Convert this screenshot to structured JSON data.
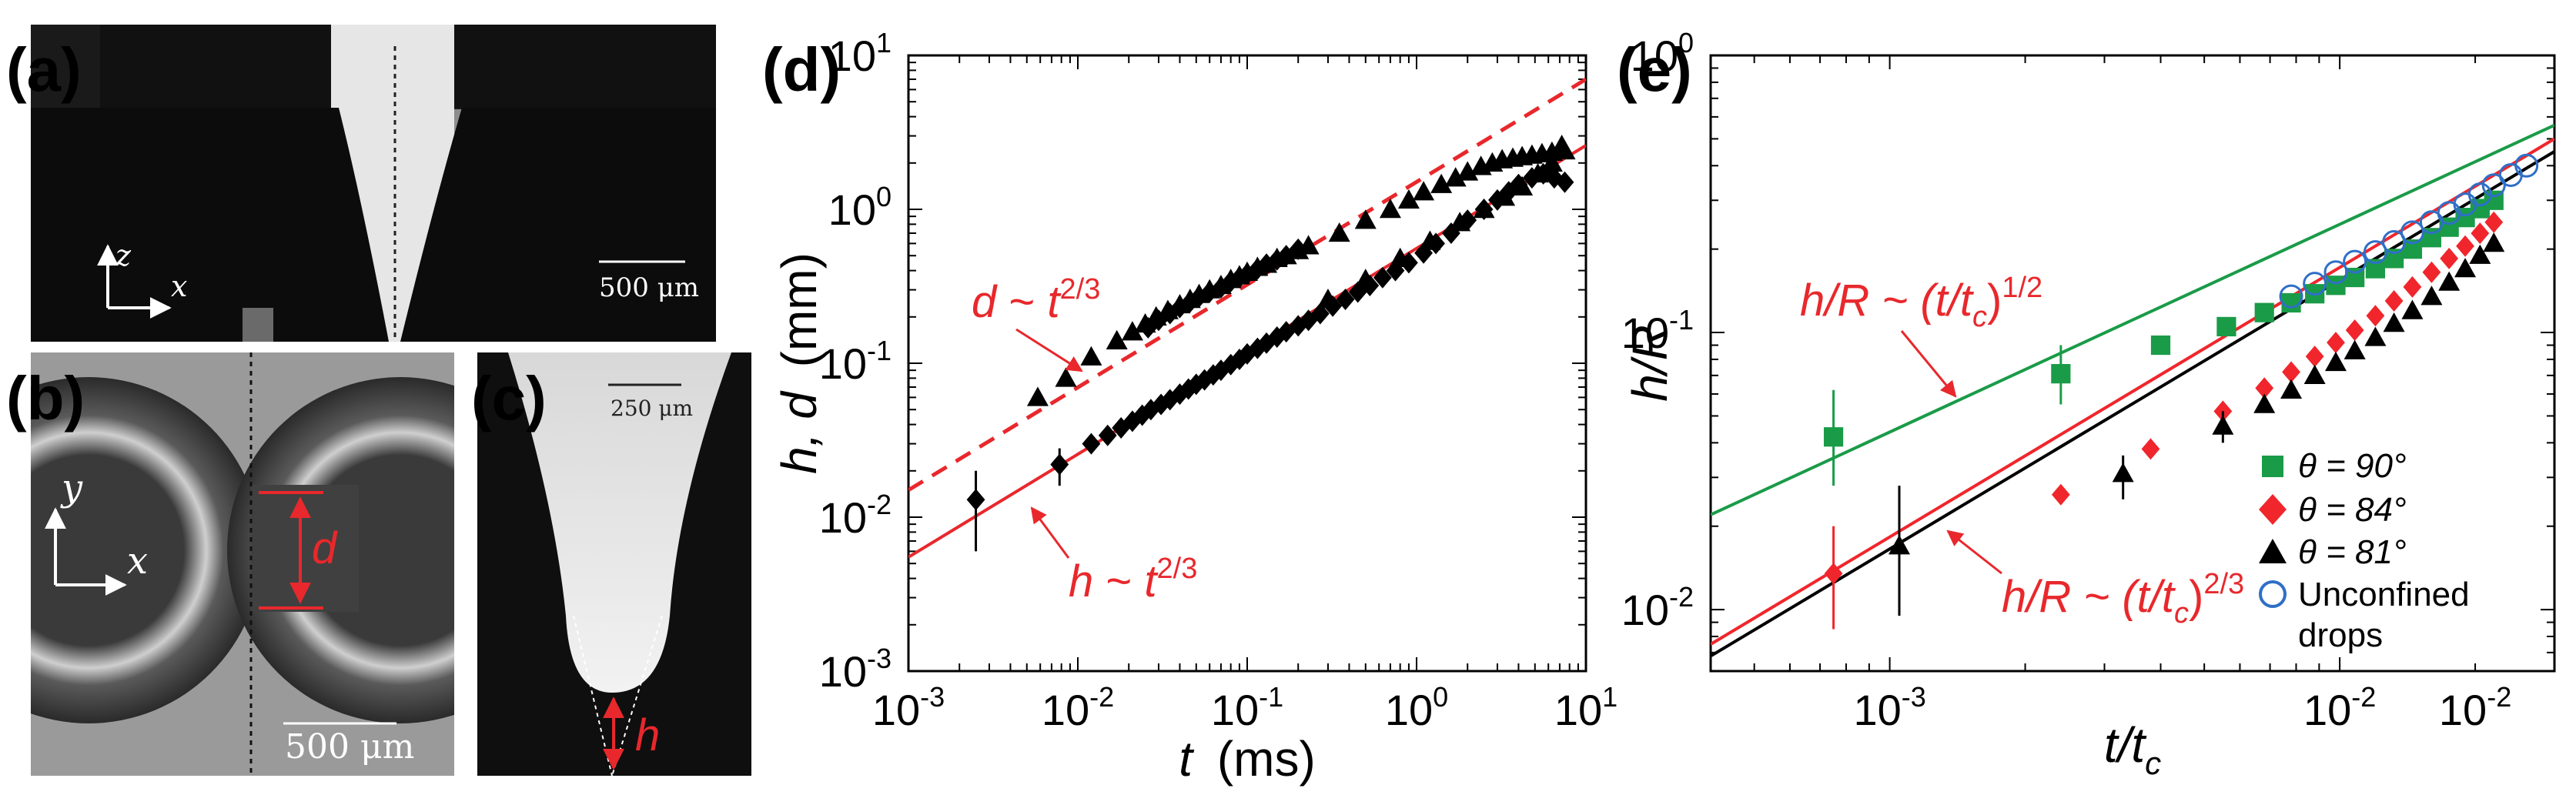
{
  "panels": {
    "a": {
      "label": "(a)",
      "axis_z": "z",
      "axis_x": "x",
      "scale": "500 μm"
    },
    "b": {
      "label": "(b)",
      "axis_y": "y",
      "axis_x": "x",
      "d_label": "d",
      "scale": "500 μm"
    },
    "c": {
      "label": "(c)",
      "scale": "250 μm",
      "h_label": "h"
    }
  },
  "chart_data": [
    {
      "panel": "(d)",
      "type": "scatter",
      "scale": "log-log",
      "xlabel_var": "t",
      "xlabel_unit": "(ms)",
      "ylabel_var": "h, d",
      "ylabel_unit": "(mm)",
      "xlim": [
        0.001,
        10
      ],
      "ylim": [
        0.001,
        10
      ],
      "x_ticks": [
        {
          "base": "10",
          "exp": "-3"
        },
        {
          "base": "10",
          "exp": "-2"
        },
        {
          "base": "10",
          "exp": "-1"
        },
        {
          "base": "10",
          "exp": "0"
        },
        {
          "base": "10",
          "exp": "1"
        }
      ],
      "y_ticks": [
        {
          "base": "10",
          "exp": "-3"
        },
        {
          "base": "10",
          "exp": "-2"
        },
        {
          "base": "10",
          "exp": "-1"
        },
        {
          "base": "10",
          "exp": "0"
        },
        {
          "base": "10",
          "exp": "1"
        }
      ],
      "series": [
        {
          "name": "d (triangles)",
          "marker": "triangle",
          "color": "#000000",
          "x": [
            0.0058,
            0.0085,
            0.012,
            0.017,
            0.021,
            0.025,
            0.029,
            0.034,
            0.04,
            0.046,
            0.052,
            0.06,
            0.07,
            0.08,
            0.09,
            0.1,
            0.115,
            0.13,
            0.15,
            0.17,
            0.2,
            0.23,
            0.35,
            0.5,
            0.7,
            0.9,
            1.1,
            1.4,
            1.7,
            2.0,
            2.4,
            2.8,
            3.2,
            3.7,
            4.2,
            4.8,
            5.5,
            6.3,
            7.2
          ],
          "y": [
            0.06,
            0.08,
            0.11,
            0.14,
            0.16,
            0.18,
            0.2,
            0.22,
            0.24,
            0.26,
            0.28,
            0.3,
            0.32,
            0.35,
            0.37,
            0.39,
            0.42,
            0.44,
            0.48,
            0.5,
            0.54,
            0.58,
            0.7,
            0.85,
            1.0,
            1.15,
            1.3,
            1.45,
            1.6,
            1.75,
            1.9,
            2.0,
            2.1,
            2.15,
            2.2,
            2.25,
            2.3,
            2.35,
            2.6
          ]
        },
        {
          "name": "d (diamonds)",
          "marker": "diamond",
          "color": "#000000",
          "x": [
            0.026,
            0.03,
            0.035,
            0.04,
            0.046,
            0.052,
            0.06,
            0.07,
            0.08,
            0.09,
            0.1,
            0.115,
            0.13,
            0.15,
            0.17,
            0.2
          ],
          "y": [
            0.17,
            0.19,
            0.21,
            0.23,
            0.25,
            0.27,
            0.29,
            0.31,
            0.34,
            0.36,
            0.38,
            0.41,
            0.44,
            0.47,
            0.5,
            0.55
          ]
        },
        {
          "name": "h (diamonds)",
          "marker": "diamond",
          "color": "#000000",
          "x": [
            0.0025,
            0.0078,
            0.012,
            0.015,
            0.018,
            0.021,
            0.024,
            0.027,
            0.031,
            0.035,
            0.04,
            0.045,
            0.05,
            0.056,
            0.063,
            0.07,
            0.08,
            0.09,
            0.1,
            0.115,
            0.13,
            0.15,
            0.17,
            0.2,
            0.23,
            0.27,
            0.32,
            0.38,
            0.45,
            0.53,
            0.63,
            0.75,
            0.9,
            1.1,
            1.3,
            1.6,
            2.0,
            2.5,
            3.0,
            3.5,
            4.0,
            4.8,
            5.6,
            6.5,
            7.5
          ],
          "y": [
            0.013,
            0.022,
            0.03,
            0.034,
            0.038,
            0.042,
            0.046,
            0.05,
            0.054,
            0.058,
            0.063,
            0.068,
            0.073,
            0.078,
            0.084,
            0.09,
            0.098,
            0.106,
            0.115,
            0.125,
            0.135,
            0.148,
            0.16,
            0.175,
            0.19,
            0.21,
            0.235,
            0.26,
            0.29,
            0.32,
            0.36,
            0.4,
            0.45,
            0.52,
            0.6,
            0.7,
            0.85,
            1.0,
            1.15,
            1.3,
            1.45,
            1.6,
            1.7,
            1.6,
            1.5
          ]
        },
        {
          "name": "h (triangles)",
          "marker": "triangle",
          "color": "#000000",
          "x": [
            0.3,
            0.5,
            0.8,
            1.2,
            1.8,
            2.5,
            3.3,
            4.2,
            5.2,
            6.3,
            7.5
          ],
          "y": [
            0.26,
            0.35,
            0.48,
            0.62,
            0.82,
            1.0,
            1.2,
            1.4,
            1.7,
            2.0,
            2.4
          ]
        }
      ],
      "lines": [
        {
          "name": "d fit",
          "style": "dashed",
          "color": "#e8282c",
          "x": [
            0.001,
            10
          ],
          "y": [
            0.015,
            7.0
          ]
        },
        {
          "name": "h fit",
          "style": "solid",
          "color": "#e8282c",
          "x": [
            0.001,
            10
          ],
          "y": [
            0.0055,
            2.6
          ]
        }
      ],
      "annotations": [
        {
          "var": "d",
          "rest": " ~ ",
          "tvar": "t",
          "exp": "2/3"
        },
        {
          "var": "h",
          "rest": " ~ ",
          "tvar": "t",
          "exp": "2/3"
        }
      ]
    },
    {
      "panel": "(e)",
      "type": "scatter",
      "scale": "log-log",
      "xlabel_var": "t/t",
      "xlabel_sub": "c",
      "ylabel_var": "h/R",
      "xlim": [
        0.0004,
        0.03
      ],
      "ylim": [
        0.006,
        1.0
      ],
      "x_ticks": [
        {
          "base": "10",
          "exp": "-3"
        },
        {
          "base": "10",
          "exp": "-2"
        },
        {
          "base": "10",
          "exp": "-2"
        }
      ],
      "y_ticks": [
        {
          "base": "10",
          "exp": "-2"
        },
        {
          "base": "10",
          "exp": "-1"
        },
        {
          "base": "10",
          "exp": "0"
        }
      ],
      "series": [
        {
          "name": "θ = 90°",
          "marker": "square",
          "color": "#1a9b48",
          "x": [
            0.00075,
            0.0024,
            0.004,
            0.0056,
            0.0068,
            0.0078,
            0.0088,
            0.0098,
            0.0108,
            0.012,
            0.0132,
            0.0145,
            0.016,
            0.0175,
            0.019,
            0.0205,
            0.022
          ],
          "y": [
            0.042,
            0.071,
            0.09,
            0.105,
            0.118,
            0.128,
            0.138,
            0.148,
            0.158,
            0.17,
            0.185,
            0.2,
            0.22,
            0.24,
            0.26,
            0.28,
            0.3
          ]
        },
        {
          "name": "θ = 84°",
          "marker": "diamond",
          "color": "#f0262c",
          "x": [
            0.00075,
            0.0024,
            0.0038,
            0.0055,
            0.0068,
            0.0078,
            0.0088,
            0.0098,
            0.0108,
            0.012,
            0.0132,
            0.0145,
            0.016,
            0.0175,
            0.019,
            0.0205,
            0.022
          ],
          "y": [
            0.0135,
            0.026,
            0.038,
            0.052,
            0.063,
            0.072,
            0.082,
            0.092,
            0.102,
            0.115,
            0.13,
            0.146,
            0.165,
            0.185,
            0.205,
            0.228,
            0.25
          ]
        },
        {
          "name": "θ = 81°",
          "marker": "triangle",
          "color": "#000000",
          "x": [
            0.00105,
            0.0033,
            0.0055,
            0.0068,
            0.0078,
            0.0088,
            0.0098,
            0.0108,
            0.012,
            0.0132,
            0.0145,
            0.016,
            0.0175,
            0.019,
            0.0205,
            0.022
          ],
          "y": [
            0.017,
            0.031,
            0.046,
            0.055,
            0.062,
            0.07,
            0.078,
            0.086,
            0.096,
            0.108,
            0.12,
            0.135,
            0.152,
            0.17,
            0.19,
            0.21
          ]
        },
        {
          "name": "Unconfined drops",
          "marker": "circle-open",
          "color": "#2f6fc7",
          "x": [
            0.0078,
            0.0088,
            0.0098,
            0.0108,
            0.012,
            0.0132,
            0.0145,
            0.016,
            0.0175,
            0.019,
            0.0205,
            0.022,
            0.024,
            0.026
          ],
          "y": [
            0.135,
            0.15,
            0.165,
            0.18,
            0.195,
            0.212,
            0.23,
            0.25,
            0.27,
            0.29,
            0.315,
            0.34,
            0.37,
            0.4
          ]
        }
      ],
      "lines": [
        {
          "name": "1/2 fit",
          "style": "solid",
          "color": "#1a9b48",
          "x": [
            0.0004,
            0.03
          ],
          "y": [
            0.022,
            0.56
          ]
        },
        {
          "name": "2/3 fit red",
          "style": "solid",
          "color": "#f0262c",
          "x": [
            0.0004,
            0.03
          ],
          "y": [
            0.0075,
            0.5
          ]
        },
        {
          "name": "2/3 fit black",
          "style": "solid",
          "color": "#000000",
          "x": [
            0.0004,
            0.03
          ],
          "y": [
            0.0068,
            0.45
          ]
        }
      ],
      "annotations": [
        {
          "pre": "h/R ~ (t/t",
          "sub": "c",
          "post": ")",
          "exp": "1/2"
        },
        {
          "pre": "h/R ~ (t/t",
          "sub": "c",
          "post": ")",
          "exp": "2/3"
        }
      ],
      "legend": {
        "position": "bottom-right",
        "theta_entries": [
          "θ = 90°",
          "θ = 84°",
          "θ = 81°"
        ],
        "unconfined_line1": "Unconfined",
        "unconfined_line2": "drops"
      }
    }
  ]
}
